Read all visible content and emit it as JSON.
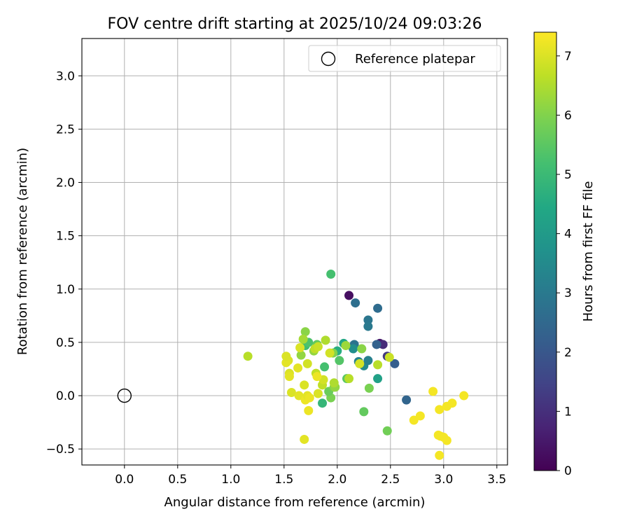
{
  "chart_data": {
    "type": "scatter",
    "title": "FOV centre drift starting at 2025/10/24 09:03:26",
    "xlabel": "Angular distance from reference (arcmin)",
    "ylabel": "Rotation from reference (arcmin)",
    "xlim": [
      -0.4,
      3.6
    ],
    "ylim": [
      -0.65,
      3.35
    ],
    "xticks": [
      0.0,
      0.5,
      1.0,
      1.5,
      2.0,
      2.5,
      3.0,
      3.5
    ],
    "xtick_labels": [
      "0.0",
      "0.5",
      "1.0",
      "1.5",
      "2.0",
      "2.5",
      "3.0",
      "3.5"
    ],
    "yticks": [
      -0.5,
      0.0,
      0.5,
      1.0,
      1.5,
      2.0,
      2.5,
      3.0
    ],
    "ytick_labels": [
      "−0.5",
      "0.0",
      "0.5",
      "1.0",
      "1.5",
      "2.0",
      "2.5",
      "3.0"
    ],
    "grid": true,
    "legend": {
      "position": "top-right",
      "entries": [
        "Reference platepar"
      ]
    },
    "reference_point": {
      "x": 0.0,
      "y": 0.0,
      "label": "Reference platepar"
    },
    "colorbar": {
      "label": "Hours from first FF file",
      "min": 0,
      "max": 7.4,
      "ticks": [
        0,
        1,
        2,
        3,
        4,
        5,
        6,
        7
      ],
      "colormap": "viridis"
    },
    "points": [
      {
        "x": 2.11,
        "y": 0.94,
        "hours": 0.3
      },
      {
        "x": 2.4,
        "y": 0.49,
        "hours": 0.5
      },
      {
        "x": 2.43,
        "y": 0.48,
        "hours": 0.9
      },
      {
        "x": 2.47,
        "y": 0.37,
        "hours": 1.2
      },
      {
        "x": 2.54,
        "y": 0.3,
        "hours": 2.2
      },
      {
        "x": 2.65,
        "y": -0.04,
        "hours": 2.4
      },
      {
        "x": 2.37,
        "y": 0.48,
        "hours": 2.3
      },
      {
        "x": 2.17,
        "y": 0.87,
        "hours": 2.7
      },
      {
        "x": 2.38,
        "y": 0.82,
        "hours": 2.6
      },
      {
        "x": 2.29,
        "y": 0.71,
        "hours": 2.9
      },
      {
        "x": 2.29,
        "y": 0.65,
        "hours": 3.0
      },
      {
        "x": 2.16,
        "y": 0.48,
        "hours": 2.8
      },
      {
        "x": 2.2,
        "y": 0.32,
        "hours": 3.3
      },
      {
        "x": 2.25,
        "y": 0.28,
        "hours": 3.5
      },
      {
        "x": 2.29,
        "y": 0.33,
        "hours": 3.2
      },
      {
        "x": 2.15,
        "y": 0.44,
        "hours": 3.6
      },
      {
        "x": 2.38,
        "y": 0.16,
        "hours": 4.2
      },
      {
        "x": 2.0,
        "y": 0.42,
        "hours": 4.6
      },
      {
        "x": 2.06,
        "y": 0.49,
        "hours": 4.4
      },
      {
        "x": 1.86,
        "y": -0.07,
        "hours": 4.9
      },
      {
        "x": 1.94,
        "y": 1.14,
        "hours": 5.2
      },
      {
        "x": 1.7,
        "y": 0.47,
        "hours": 5.1
      },
      {
        "x": 1.73,
        "y": 0.5,
        "hours": 5.3
      },
      {
        "x": 2.02,
        "y": 0.33,
        "hours": 5.4
      },
      {
        "x": 1.88,
        "y": 0.27,
        "hours": 5.2
      },
      {
        "x": 2.09,
        "y": 0.16,
        "hours": 5.5
      },
      {
        "x": 2.25,
        "y": -0.15,
        "hours": 5.6
      },
      {
        "x": 2.47,
        "y": -0.33,
        "hours": 5.8
      },
      {
        "x": 2.3,
        "y": 0.07,
        "hours": 5.9
      },
      {
        "x": 1.81,
        "y": 0.48,
        "hours": 5.6
      },
      {
        "x": 1.94,
        "y": -0.02,
        "hours": 5.9
      },
      {
        "x": 1.92,
        "y": 0.04,
        "hours": 5.7
      },
      {
        "x": 1.97,
        "y": 0.08,
        "hours": 6.0
      },
      {
        "x": 1.96,
        "y": 0.4,
        "hours": 6.0
      },
      {
        "x": 2.23,
        "y": 0.44,
        "hours": 6.1
      },
      {
        "x": 2.08,
        "y": 0.47,
        "hours": 6.3
      },
      {
        "x": 1.98,
        "y": 0.08,
        "hours": 6.2
      },
      {
        "x": 1.7,
        "y": 0.6,
        "hours": 6.1
      },
      {
        "x": 1.66,
        "y": 0.38,
        "hours": 6.2
      },
      {
        "x": 1.68,
        "y": 0.53,
        "hours": 6.4
      },
      {
        "x": 1.78,
        "y": 0.42,
        "hours": 6.2
      },
      {
        "x": 1.89,
        "y": 0.52,
        "hours": 6.5
      },
      {
        "x": 1.97,
        "y": 0.12,
        "hours": 6.5
      },
      {
        "x": 2.11,
        "y": 0.16,
        "hours": 6.6
      },
      {
        "x": 2.38,
        "y": 0.29,
        "hours": 6.6
      },
      {
        "x": 2.49,
        "y": 0.36,
        "hours": 6.8
      },
      {
        "x": 1.16,
        "y": 0.37,
        "hours": 6.6
      },
      {
        "x": 1.79,
        "y": 0.44,
        "hours": 6.7
      },
      {
        "x": 1.82,
        "y": 0.46,
        "hours": 6.8
      },
      {
        "x": 1.86,
        "y": 0.1,
        "hours": 6.7
      },
      {
        "x": 1.87,
        "y": 0.15,
        "hours": 6.9
      },
      {
        "x": 1.8,
        "y": 0.21,
        "hours": 6.7
      },
      {
        "x": 1.72,
        "y": 0.3,
        "hours": 6.9
      },
      {
        "x": 2.21,
        "y": 0.3,
        "hours": 6.9
      },
      {
        "x": 1.93,
        "y": 0.4,
        "hours": 6.9
      },
      {
        "x": 1.65,
        "y": 0.45,
        "hours": 7.0
      },
      {
        "x": 1.63,
        "y": 0.26,
        "hours": 7.1
      },
      {
        "x": 1.54,
        "y": 0.33,
        "hours": 7.0
      },
      {
        "x": 1.52,
        "y": 0.31,
        "hours": 7.1
      },
      {
        "x": 1.52,
        "y": 0.37,
        "hours": 7.0
      },
      {
        "x": 1.55,
        "y": 0.21,
        "hours": 7.0
      },
      {
        "x": 1.55,
        "y": 0.18,
        "hours": 7.1
      },
      {
        "x": 1.57,
        "y": 0.03,
        "hours": 7.0
      },
      {
        "x": 1.64,
        "y": 0.0,
        "hours": 7.1
      },
      {
        "x": 1.69,
        "y": 0.1,
        "hours": 7.0
      },
      {
        "x": 1.7,
        "y": -0.04,
        "hours": 7.2
      },
      {
        "x": 1.72,
        "y": 0.0,
        "hours": 7.1
      },
      {
        "x": 1.74,
        "y": -0.02,
        "hours": 7.2
      },
      {
        "x": 1.73,
        "y": -0.14,
        "hours": 7.2
      },
      {
        "x": 1.69,
        "y": -0.41,
        "hours": 7.1
      },
      {
        "x": 1.82,
        "y": 0.02,
        "hours": 7.0
      },
      {
        "x": 1.81,
        "y": 0.18,
        "hours": 7.2
      },
      {
        "x": 2.9,
        "y": 0.04,
        "hours": 7.3
      },
      {
        "x": 2.72,
        "y": -0.23,
        "hours": 7.3
      },
      {
        "x": 2.78,
        "y": -0.19,
        "hours": 7.3
      },
      {
        "x": 2.96,
        "y": -0.13,
        "hours": 7.3
      },
      {
        "x": 3.03,
        "y": -0.1,
        "hours": 7.3
      },
      {
        "x": 3.08,
        "y": -0.07,
        "hours": 7.3
      },
      {
        "x": 3.19,
        "y": 0.0,
        "hours": 7.3
      },
      {
        "x": 2.95,
        "y": -0.37,
        "hours": 7.3
      },
      {
        "x": 2.97,
        "y": -0.38,
        "hours": 7.3
      },
      {
        "x": 3.0,
        "y": -0.39,
        "hours": 7.3
      },
      {
        "x": 3.03,
        "y": -0.42,
        "hours": 7.3
      },
      {
        "x": 2.96,
        "y": -0.56,
        "hours": 7.3
      }
    ]
  }
}
